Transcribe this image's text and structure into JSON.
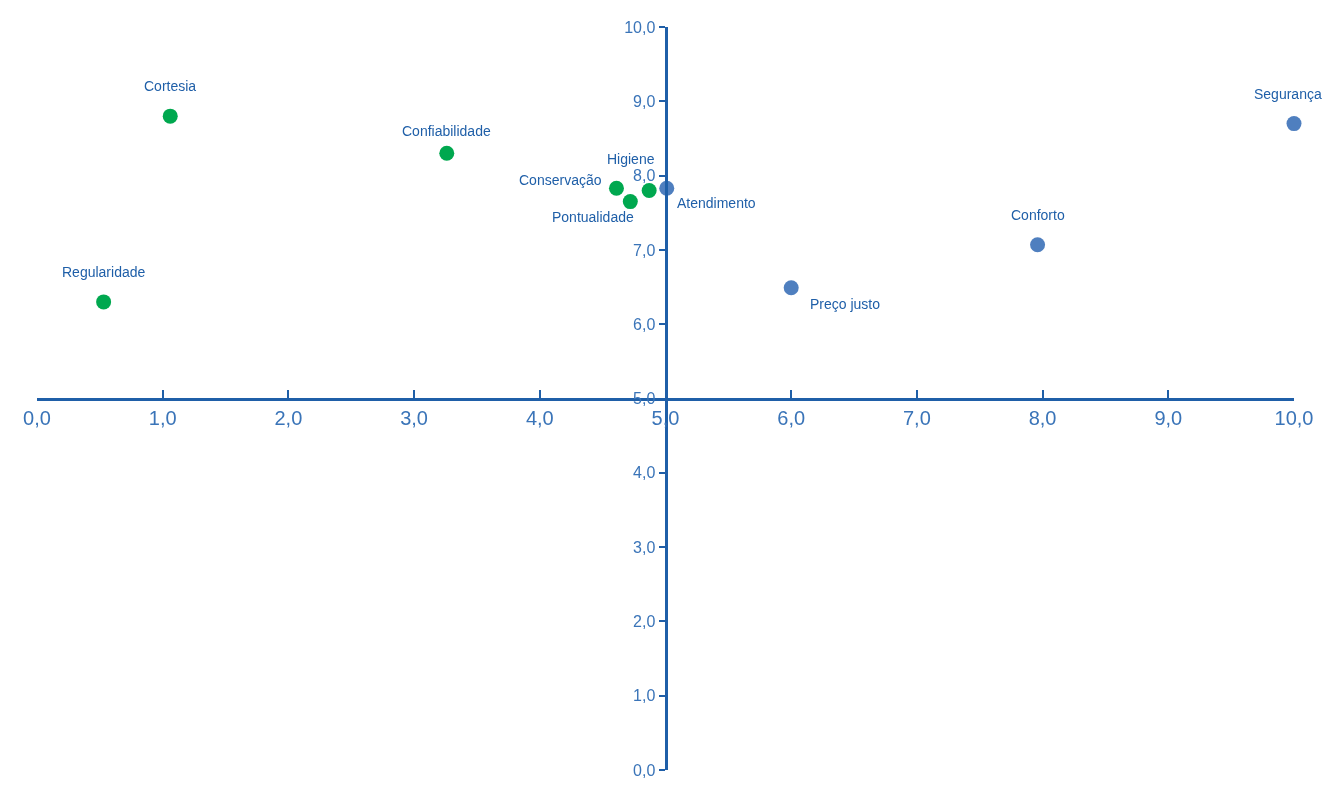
{
  "chart_data": {
    "type": "scatter",
    "series": [
      {
        "color": "#00a84f",
        "x": [
          1.06,
          3.26,
          0.53,
          4.61,
          4.72,
          4.87
        ],
        "values": [
          8.8,
          8.3,
          6.3,
          7.83,
          7.65,
          7.8
        ]
      },
      {
        "color": "#4f7fbf",
        "x": [
          5.01,
          6.0,
          7.96,
          10.0
        ],
        "values": [
          7.83,
          6.49,
          7.07,
          8.7
        ]
      }
    ],
    "annotations": [
      {
        "text": "Cortesia",
        "x": 1.06,
        "y": 8.8
      },
      {
        "text": "Confiabilidade",
        "x": 3.26,
        "y": 8.3
      },
      {
        "text": "Regularidade",
        "x": 0.53,
        "y": 6.3
      },
      {
        "text": "Conservação",
        "x": 4.61,
        "y": 7.83
      },
      {
        "text": "Pontualidade",
        "x": 4.72,
        "y": 7.65
      },
      {
        "text": "Higiene",
        "x": 4.87,
        "y": 7.8
      },
      {
        "text": "Atendimento",
        "x": 5.01,
        "y": 7.83
      },
      {
        "text": "Preço justo",
        "x": 6.0,
        "y": 6.49
      },
      {
        "text": "Conforto",
        "x": 7.96,
        "y": 7.07
      },
      {
        "text": "Segurança",
        "x": 10.0,
        "y": 8.7
      }
    ],
    "xlim": [
      0,
      10
    ],
    "ylim": [
      0,
      10
    ],
    "xticks": [
      {
        "value": 0,
        "label": "0,0"
      },
      {
        "value": 1,
        "label": "1,0"
      },
      {
        "value": 2,
        "label": "2,0"
      },
      {
        "value": 3,
        "label": "3,0"
      },
      {
        "value": 4,
        "label": "4,0"
      },
      {
        "value": 5,
        "label": "5,0"
      },
      {
        "value": 6,
        "label": "6,0"
      },
      {
        "value": 7,
        "label": "7,0"
      },
      {
        "value": 8,
        "label": "8,0"
      },
      {
        "value": 9,
        "label": "9,0"
      },
      {
        "value": 10,
        "label": "10,0"
      }
    ],
    "yticks": [
      {
        "value": 0,
        "label": "0,0"
      },
      {
        "value": 1,
        "label": "1,0"
      },
      {
        "value": 2,
        "label": "2,0"
      },
      {
        "value": 3,
        "label": "3,0"
      },
      {
        "value": 4,
        "label": "4,0"
      },
      {
        "value": 5,
        "label": "5,0"
      },
      {
        "value": 6,
        "label": "6,0"
      },
      {
        "value": 7,
        "label": "7,0"
      },
      {
        "value": 8,
        "label": "8,0"
      },
      {
        "value": 9,
        "label": "9,0"
      },
      {
        "value": 10,
        "label": "10,0"
      }
    ],
    "marker": "circle"
  }
}
